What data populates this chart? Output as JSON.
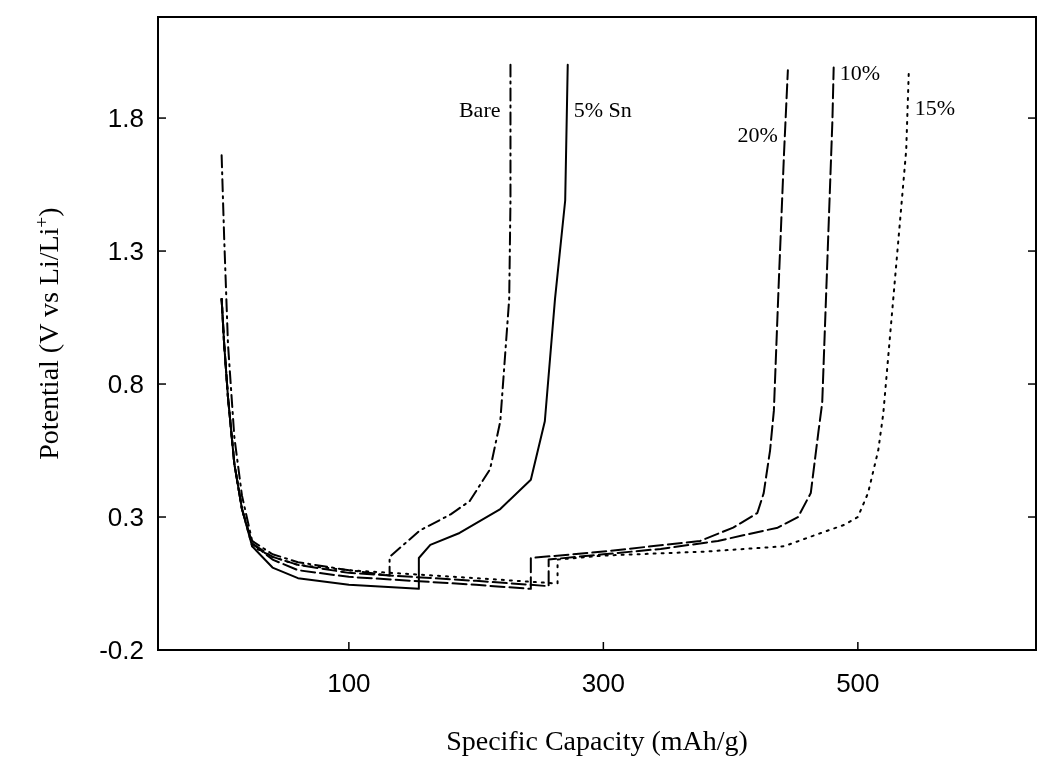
{
  "chart_data": {
    "type": "line",
    "xlabel": "Specific Capacity (mAh/g)",
    "ylabel": "Potential (V vs Li/Li$^{+}$)",
    "xlim": [
      -50,
      640
    ],
    "ylim": [
      -0.2,
      2.18
    ],
    "xticks": [
      100,
      300,
      500
    ],
    "yticks": [
      -0.2,
      0.3,
      0.8,
      1.3,
      1.8
    ],
    "grid": false,
    "marker": "none",
    "series": [
      {
        "name": "Bare",
        "color": "#000000",
        "line_style": "dashdot",
        "x": [
          0,
          2,
          5,
          10,
          16,
          24,
          40,
          60,
          100,
          132,
          132,
          156,
          180,
          195,
          211,
          219,
          226,
          227,
          227
        ],
        "values": [
          1.66,
          1.35,
          0.95,
          0.6,
          0.38,
          0.21,
          0.16,
          0.13,
          0.1,
          0.08,
          0.15,
          0.25,
          0.31,
          0.36,
          0.48,
          0.66,
          1.12,
          1.49,
          2.0
        ]
      },
      {
        "name": "5% Sn",
        "color": "#000000",
        "line_style": "solid",
        "x": [
          0,
          2,
          5,
          10,
          16,
          24,
          40,
          60,
          100,
          155,
          155,
          164,
          187,
          219,
          243,
          254,
          262,
          270,
          272
        ],
        "values": [
          1.12,
          0.95,
          0.75,
          0.5,
          0.33,
          0.19,
          0.11,
          0.07,
          0.045,
          0.03,
          0.146,
          0.195,
          0.24,
          0.33,
          0.44,
          0.66,
          1.12,
          1.49,
          2.0
        ]
      },
      {
        "name": "20%",
        "color": "#000000",
        "line_style": "dashed",
        "x": [
          0,
          2,
          5,
          10,
          16,
          24,
          40,
          60,
          100,
          150,
          200,
          243,
          243,
          300,
          376,
          402,
          421,
          426,
          431,
          434,
          438,
          442,
          445
        ],
        "values": [
          1.12,
          0.95,
          0.75,
          0.5,
          0.33,
          0.2,
          0.14,
          0.1,
          0.075,
          0.06,
          0.045,
          0.03,
          0.146,
          0.17,
          0.21,
          0.26,
          0.315,
          0.39,
          0.55,
          0.7,
          1.2,
          1.67,
          1.98
        ]
      },
      {
        "name": "10%",
        "color": "#000000",
        "line_style": "dashed",
        "x": [
          0,
          2,
          5,
          10,
          16,
          24,
          40,
          60,
          100,
          150,
          200,
          257,
          257,
          300,
          345,
          390,
          437,
          453,
          463,
          469,
          472,
          480,
          481
        ],
        "values": [
          1.12,
          0.95,
          0.75,
          0.5,
          0.33,
          0.2,
          0.15,
          0.12,
          0.09,
          0.075,
          0.06,
          0.04,
          0.14,
          0.16,
          0.18,
          0.21,
          0.26,
          0.3,
          0.39,
          0.62,
          0.73,
          1.79,
          1.99
        ]
      },
      {
        "name": "15%",
        "color": "#000000",
        "line_style": "dotted",
        "x": [
          0,
          2,
          5,
          10,
          16,
          24,
          40,
          60,
          100,
          150,
          200,
          264,
          264,
          300,
          380,
          442,
          471,
          489,
          500,
          508,
          516,
          520,
          538,
          540
        ],
        "values": [
          1.12,
          0.95,
          0.75,
          0.5,
          0.33,
          0.19,
          0.15,
          0.12,
          0.1,
          0.085,
          0.07,
          0.05,
          0.14,
          0.155,
          0.17,
          0.19,
          0.24,
          0.27,
          0.3,
          0.39,
          0.55,
          0.69,
          1.68,
          1.97
        ]
      }
    ]
  }
}
